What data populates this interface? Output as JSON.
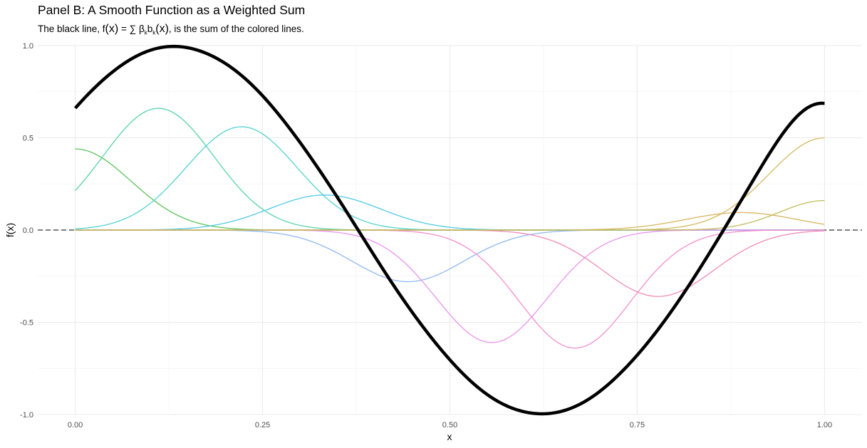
{
  "chart_data": {
    "type": "line",
    "title": "Panel B: A Smooth Function as a Weighted Sum",
    "subtitle": {
      "prefix": "The black line, f",
      "x": "(x)",
      "eq": " = ",
      "sum": "∑",
      "beta": "β",
      "sub_k1": "k",
      "b": "b",
      "sub_k2": "k",
      "x2": "(x)",
      "suffix": ", is the sum of the colored lines."
    },
    "xlabel": "x",
    "ylabel": "f(x)",
    "xlim": [
      -0.05,
      1.05
    ],
    "ylim": [
      -1.0,
      1.0
    ],
    "x_ticks": [
      "0.00",
      "0.25",
      "0.50",
      "0.75",
      "1.00"
    ],
    "x_tick_values": [
      0,
      0.25,
      0.5,
      0.75,
      1.0
    ],
    "y_ticks": [
      "-1.0",
      "-0.5",
      "0.0",
      "0.5",
      "1.0"
    ],
    "y_tick_values": [
      -1.0,
      -0.5,
      0.0,
      0.5,
      1.0
    ],
    "grid": true,
    "reference_line": {
      "y": 0,
      "style": "dashed",
      "color": "#555555"
    },
    "total": {
      "color": "#000000",
      "note": "sum of basis components",
      "samples": [
        [
          0.0,
          0.61
        ],
        [
          0.13,
          0.92
        ],
        [
          0.38,
          0.0
        ],
        [
          0.62,
          -0.92
        ],
        [
          0.87,
          0.0
        ],
        [
          1.0,
          0.69
        ]
      ]
    },
    "series": [
      {
        "center": 0.0,
        "amplitude": 0.44,
        "color": "#5cc35c"
      },
      {
        "center": 0.111,
        "amplitude": 0.66,
        "color": "#56d3a8"
      },
      {
        "center": 0.222,
        "amplitude": 0.56,
        "color": "#52d3cf"
      },
      {
        "center": 0.333,
        "amplitude": 0.19,
        "color": "#4ec9e6"
      },
      {
        "center": 0.444,
        "amplitude": -0.28,
        "color": "#8fb8f5"
      },
      {
        "center": 0.556,
        "amplitude": -0.61,
        "color": "#e993ef"
      },
      {
        "center": 0.667,
        "amplitude": -0.64,
        "color": "#f38fcf"
      },
      {
        "center": 0.778,
        "amplitude": -0.36,
        "color": "#f08ab5"
      },
      {
        "center": 0.889,
        "amplitude": 0.095,
        "color": "#d9b55c"
      },
      {
        "center": 1.0,
        "amplitude": 0.5,
        "color": "#d6b85e"
      },
      {
        "center": 1.0,
        "amplitude": 0.16,
        "color": "#c2bd5a",
        "width": 0.06
      }
    ]
  }
}
